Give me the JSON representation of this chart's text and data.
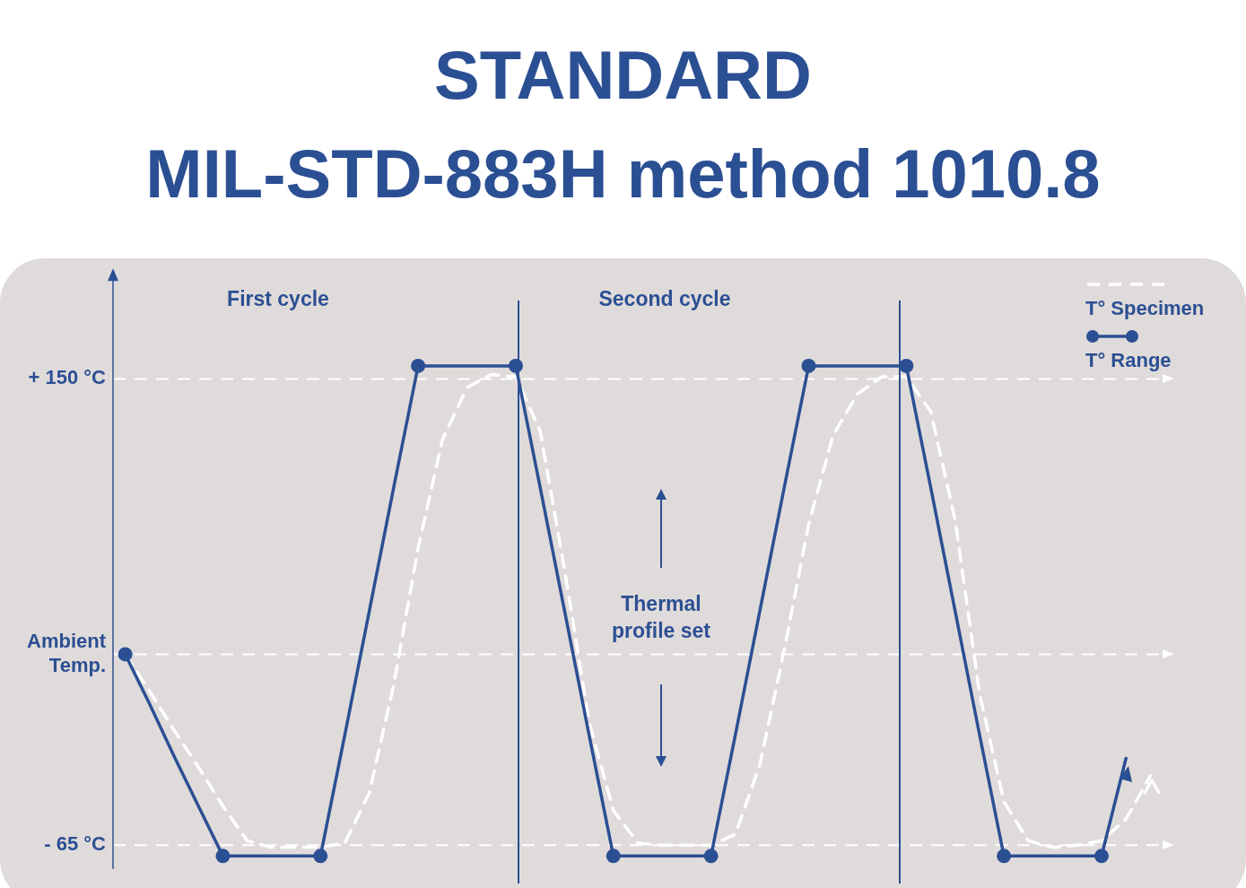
{
  "chart_data": {
    "type": "line",
    "title": "STANDARD",
    "subtitle": "MIL-STD-883H method 1010.8",
    "categories": [
      null,
      null,
      null,
      null,
      null,
      null,
      null,
      null,
      null,
      null,
      null,
      null,
      null,
      null,
      null,
      null,
      null,
      null,
      null,
      null,
      null,
      null,
      null,
      null,
      null,
      null,
      null,
      null,
      null,
      null,
      null,
      null,
      null,
      null,
      null,
      null,
      null,
      null,
      null,
      null,
      null,
      null,
      null
    ],
    "series": [
      {
        "name": "T° Specimen",
        "color": "#ffffff",
        "line_style": "dashed",
        "marker": "none",
        "values": [
          23,
          6,
          -12,
          -29,
          -47,
          -63,
          -66,
          -66,
          -66,
          -64,
          -41,
          9,
          72,
          122,
          146,
          152,
          151,
          126,
          62,
          -8,
          -49,
          -64,
          -65,
          -65,
          -65,
          -60,
          -28,
          25,
          83,
          124,
          143,
          151,
          151,
          135,
          85,
          5,
          -45,
          -63,
          -66,
          -65,
          -63,
          -53,
          -33
        ]
      },
      {
        "name": "T° Range",
        "color": "#2b4f93",
        "line_style": "solid",
        "marker": "none",
        "values": [
          23,
          0,
          -24,
          -47,
          -70,
          -70,
          -70,
          -70,
          -70,
          -14,
          43,
          100,
          156,
          156,
          156,
          156,
          156,
          100,
          43,
          -14,
          -70,
          -70,
          -70,
          -70,
          -70,
          -14,
          43,
          100,
          156,
          156,
          156,
          156,
          156,
          100,
          43,
          -14,
          -70,
          -70,
          -70,
          -70,
          -70,
          -25,
          null
        ]
      },
      {
        "type": "scatter",
        "color": "#2b4f93",
        "marker": "circle",
        "values": [
          23,
          null,
          null,
          null,
          -70,
          null,
          null,
          null,
          -70,
          null,
          null,
          null,
          156,
          null,
          null,
          null,
          156,
          null,
          null,
          null,
          -70,
          null,
          null,
          null,
          -70,
          null,
          null,
          null,
          156,
          null,
          null,
          null,
          156,
          null,
          null,
          null,
          -70,
          null,
          null,
          null,
          -70,
          null,
          null
        ]
      }
    ],
    "ylim": [
      -76,
      196
    ],
    "yticks": [
      {
        "value": 150,
        "label": "+ 150 °C"
      },
      {
        "value": 23,
        "label": "Ambient Temp."
      },
      {
        "value": -65,
        "label": "- 65 °C"
      }
    ],
    "tick_labels": "y",
    "grid": false,
    "legend": "top right",
    "ref_lines": [
      {
        "axis": "y",
        "value": 150,
        "color": "#ffffff",
        "line_style": "dashed"
      },
      {
        "axis": "y",
        "value": 23,
        "color": "#ffffff",
        "line_style": "dashed"
      },
      {
        "axis": "y",
        "value": -65,
        "color": "#ffffff",
        "line_style": "dashed"
      }
    ],
    "annotations": [
      "First cycle",
      "Second cycle",
      "Thermal profile set"
    ]
  }
}
